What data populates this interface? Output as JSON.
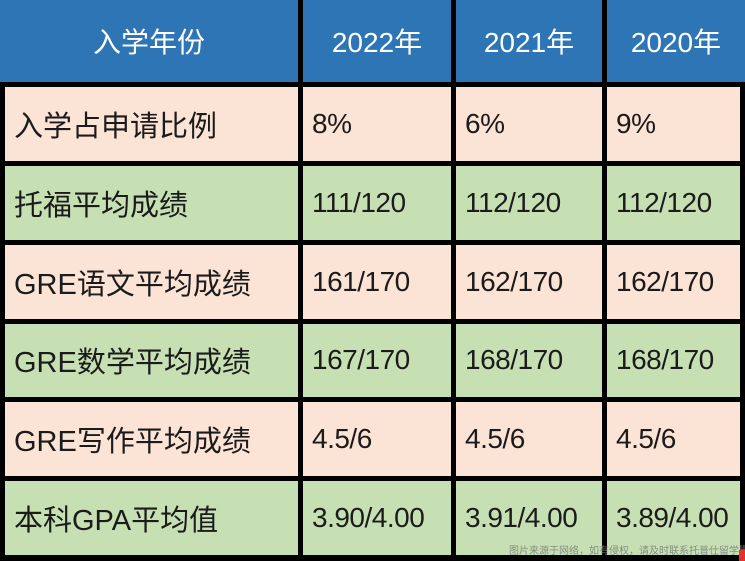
{
  "chart_data": {
    "type": "table",
    "columns": [
      "入学年份",
      "2022年",
      "2021年",
      "2020年"
    ],
    "rows": [
      [
        "入学占申请比例",
        "8%",
        "6%",
        "9%"
      ],
      [
        "托福平均成绩",
        "111/120",
        "112/120",
        "112/120"
      ],
      [
        "GRE语文平均成绩",
        "161/170",
        "162/170",
        "162/170"
      ],
      [
        "GRE数学平均成绩",
        "167/170",
        "168/170",
        "168/170"
      ],
      [
        "GRE写作平均成绩",
        "4.5/6",
        "4.5/6",
        "4.5/6"
      ],
      [
        "本科GPA平均值",
        "3.90/4.00",
        "3.91/4.00",
        "3.89/4.00"
      ]
    ],
    "layout": {
      "header_position": "top-row-and-left-column-labels",
      "grid": "on",
      "row_band_colors": [
        "pink",
        "green",
        "pink",
        "green",
        "pink",
        "green"
      ]
    }
  },
  "watermark": {
    "text": "图片来源于网络，如有侵权，请及时联系托普仕留学删除"
  },
  "colors": {
    "header_bg": "#2E75B6",
    "header_text": "#FFFFFF",
    "row_pink": "#FBE3D5",
    "row_green": "#C6E0B4",
    "grid_border": "#000000",
    "cell_text": "#1B1B1B",
    "watermark_gray": "#7D7D7D",
    "corner_red": "#E0342C"
  }
}
